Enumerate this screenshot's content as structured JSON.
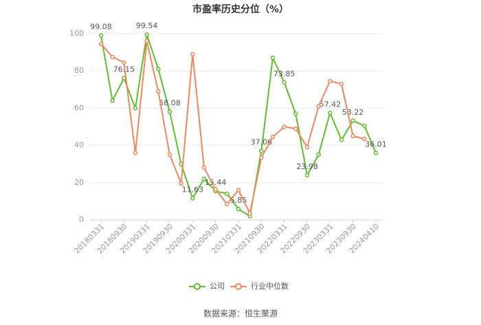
{
  "chart_data": {
    "type": "line",
    "title": "市盈率历史分位（%）",
    "categories": [
      "20180331",
      null,
      "20180930",
      null,
      "20190331",
      null,
      "20190930",
      null,
      "20200331",
      null,
      "20200930",
      null,
      "20210331",
      null,
      "20210930",
      null,
      "20220331",
      null,
      "20220930",
      null,
      "20230331",
      null,
      "20230930",
      null,
      "20240410"
    ],
    "series": [
      {
        "name": "公司",
        "color": "#5cbf2a",
        "values": [
          99.08,
          64,
          76.15,
          60,
          99.54,
          81,
          58.08,
          30,
          11.63,
          22,
          15.44,
          14,
          5.85,
          2,
          37.06,
          87,
          73.85,
          57,
          23.98,
          35,
          57.42,
          43,
          53.22,
          50.5,
          36.01
        ],
        "value_labels": [
          "99.08",
          null,
          "76.15",
          null,
          "99.54",
          null,
          "58.08",
          null,
          "11.63",
          null,
          "15.44",
          null,
          "5.85",
          null,
          "37.06",
          null,
          "73.85",
          null,
          "23.98",
          null,
          "57.42",
          null,
          "53.22",
          null,
          "36.01"
        ]
      },
      {
        "name": "行业中位数",
        "color": "#f2855a",
        "values": [
          94.5,
          87.5,
          84.5,
          36,
          96,
          69,
          35,
          19.5,
          89,
          28,
          16.5,
          8.5,
          16,
          3.5,
          33.5,
          44.5,
          50,
          49,
          39,
          61,
          74.5,
          73,
          45,
          43.5,
          null
        ]
      }
    ],
    "ylim": [
      0,
      100
    ],
    "yticks": [
      0,
      20,
      40,
      60,
      80,
      100
    ],
    "grid": true,
    "legend": "bottom",
    "source": "数据来源：恒生聚源"
  }
}
